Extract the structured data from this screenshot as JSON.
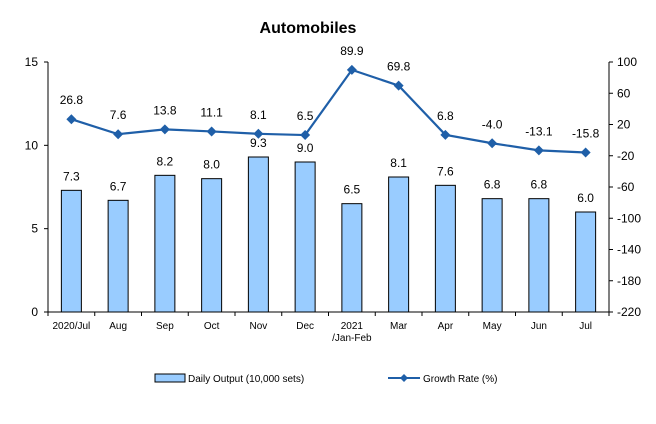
{
  "chart_data": {
    "type": "bar",
    "title": "Automobiles",
    "categories": [
      "2020/Jul",
      "Aug",
      "Sep",
      "Oct",
      "Nov",
      "Dec",
      "2021|/Jan-Feb",
      "Mar",
      "Apr",
      "May",
      "Jun",
      "Jul"
    ],
    "series": [
      {
        "name": "Daily Output (10,000 sets)",
        "type": "bar",
        "axis": "left",
        "color": "#99ccff",
        "values": [
          7.3,
          6.7,
          8.2,
          8.0,
          9.3,
          9.0,
          6.5,
          8.1,
          7.6,
          6.8,
          6.8,
          6.0
        ],
        "labels": [
          "7.3",
          "6.7",
          "8.2",
          "8.0",
          "9.3",
          "9.0",
          "6.5",
          "8.1",
          "7.6",
          "6.8",
          "6.8",
          "6.0"
        ]
      },
      {
        "name": "Growth Rate (%)",
        "type": "line",
        "axis": "right",
        "color": "#1f5fa8",
        "values": [
          26.8,
          7.6,
          13.8,
          11.1,
          8.1,
          6.5,
          89.9,
          69.8,
          6.8,
          -4.0,
          -13.1,
          -15.8
        ],
        "labels": [
          "26.8",
          "7.6",
          "13.8",
          "11.1",
          "8.1",
          "6.5",
          "89.9",
          "69.8",
          "6.8",
          "-4.0",
          "-13.1",
          "-15.8"
        ]
      }
    ],
    "y_left": {
      "ylim": [
        0,
        15
      ],
      "ticks": [
        "0",
        "5",
        "10",
        "15"
      ]
    },
    "y_right": {
      "ylim": [
        -220,
        100
      ],
      "ticks": [
        "100",
        "60",
        "20",
        "-20",
        "-60",
        "-100",
        "-140",
        "-180",
        "-220"
      ]
    },
    "legend": {
      "placement": "bottom"
    }
  }
}
